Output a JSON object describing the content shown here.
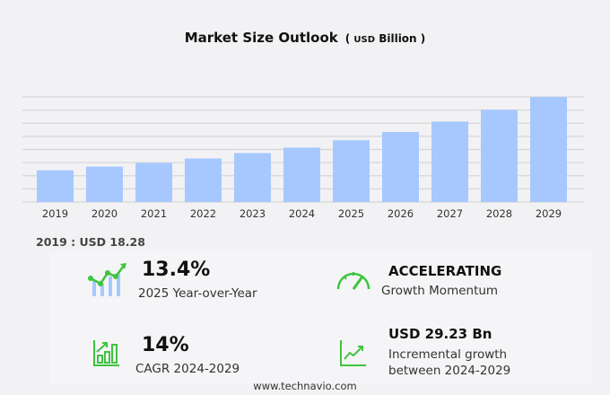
{
  "title": "Market Size Outlook",
  "unit_prefix": "USD",
  "unit": "Billion",
  "chart_data": {
    "type": "bar",
    "title": "Market Size Outlook",
    "unit": "USD Billion",
    "categories": [
      "2019",
      "2020",
      "2021",
      "2022",
      "2023",
      "2024",
      "2025",
      "2026",
      "2027",
      "2028",
      "2029"
    ],
    "values": [
      18.28,
      20.4,
      22.5,
      25.1,
      28.2,
      31.4,
      35.6,
      40.4,
      46.4,
      53.2,
      60.6
    ],
    "ylim": [
      0,
      60.6
    ],
    "grid": true,
    "bar_color": "#a6c8ff"
  },
  "base_label": "2019 : USD  18.28",
  "kpis": {
    "yoy": {
      "value": "13.4%",
      "label": "2025 Year-over-Year"
    },
    "momentum": {
      "value": "ACCELERATING",
      "label": "Growth Momentum"
    },
    "cagr": {
      "value": "14%",
      "label": "CAGR 2024-2029"
    },
    "incremental": {
      "value": "USD 29.23 Bn",
      "label1": "Incremental growth",
      "label2": "between 2024-2029"
    }
  },
  "accent_color": "#3ec43e",
  "footer": "www.technavio.com"
}
